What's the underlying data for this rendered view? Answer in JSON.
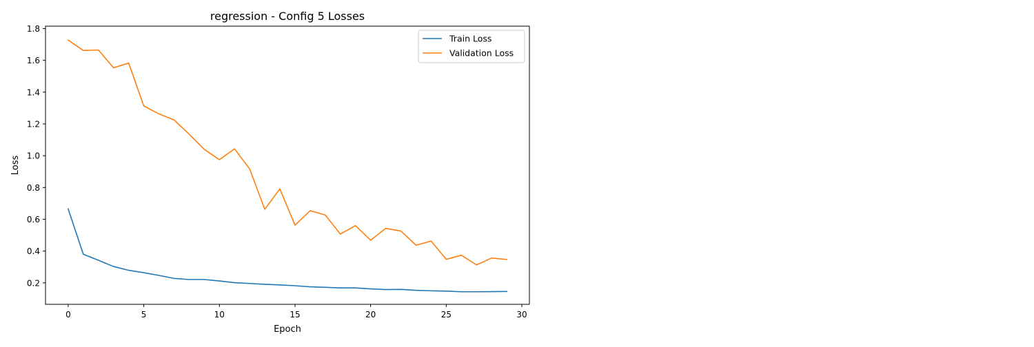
{
  "chart_data": {
    "type": "line",
    "title": "regression - Config 5 Losses",
    "xlabel": "Epoch",
    "ylabel": "Loss",
    "xlim": [
      -1.5,
      30.5
    ],
    "ylim": [
      0.065,
      1.815
    ],
    "xticks": [
      0,
      5,
      10,
      15,
      20,
      25,
      30
    ],
    "yticks": [
      0.2,
      0.4,
      0.6,
      0.8,
      1.0,
      1.2,
      1.4,
      1.6,
      1.8
    ],
    "ytick_labels": [
      "0.2",
      "0.4",
      "0.6",
      "0.8",
      "1.0",
      "1.2",
      "1.4",
      "1.6",
      "1.8"
    ],
    "grid": false,
    "legend": {
      "position": "top-right"
    },
    "x": [
      0,
      1,
      2,
      3,
      4,
      5,
      6,
      7,
      8,
      9,
      10,
      11,
      12,
      13,
      14,
      15,
      16,
      17,
      18,
      19,
      20,
      21,
      22,
      23,
      24,
      25,
      26,
      27,
      28,
      29
    ],
    "series": [
      {
        "name": "Train Loss",
        "color": "#1f77b4",
        "values": [
          0.665,
          0.38,
          0.342,
          0.303,
          0.279,
          0.264,
          0.247,
          0.228,
          0.221,
          0.221,
          0.212,
          0.201,
          0.196,
          0.191,
          0.187,
          0.182,
          0.175,
          0.172,
          0.168,
          0.168,
          0.162,
          0.158,
          0.159,
          0.153,
          0.15,
          0.148,
          0.144,
          0.144,
          0.145,
          0.146
        ]
      },
      {
        "name": "Validation Loss",
        "color": "#ff7f0e",
        "values": [
          1.727,
          1.662,
          1.665,
          1.553,
          1.583,
          1.313,
          1.263,
          1.225,
          1.135,
          1.04,
          0.975,
          1.043,
          0.917,
          0.663,
          0.791,
          0.563,
          0.654,
          0.627,
          0.507,
          0.56,
          0.468,
          0.543,
          0.526,
          0.437,
          0.463,
          0.348,
          0.374,
          0.313,
          0.356,
          0.347
        ]
      }
    ]
  }
}
